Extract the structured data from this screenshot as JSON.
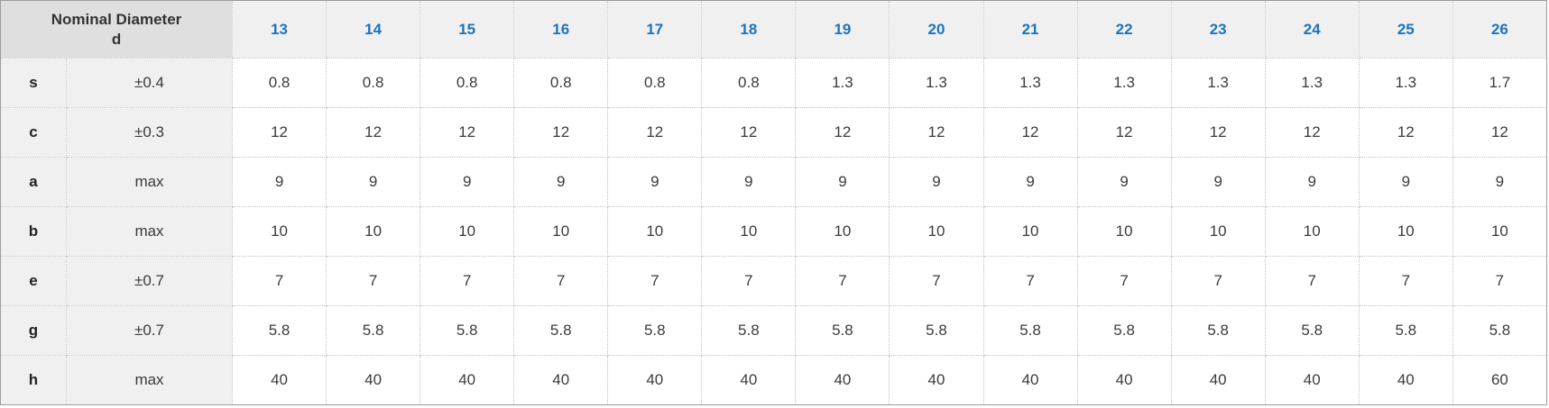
{
  "table": {
    "corner_header": {
      "title": "Nominal Diameter",
      "symbol": "d"
    },
    "columns": [
      "13",
      "14",
      "15",
      "16",
      "17",
      "18",
      "19",
      "20",
      "21",
      "22",
      "23",
      "24",
      "25",
      "26"
    ],
    "rows": [
      {
        "label": "s",
        "tolerance": "±0.4",
        "values": [
          "0.8",
          "0.8",
          "0.8",
          "0.8",
          "0.8",
          "0.8",
          "1.3",
          "1.3",
          "1.3",
          "1.3",
          "1.3",
          "1.3",
          "1.3",
          "1.7"
        ]
      },
      {
        "label": "c",
        "tolerance": "±0.3",
        "values": [
          "12",
          "12",
          "12",
          "12",
          "12",
          "12",
          "12",
          "12",
          "12",
          "12",
          "12",
          "12",
          "12",
          "12"
        ]
      },
      {
        "label": "a",
        "tolerance": "max",
        "values": [
          "9",
          "9",
          "9",
          "9",
          "9",
          "9",
          "9",
          "9",
          "9",
          "9",
          "9",
          "9",
          "9",
          "9"
        ]
      },
      {
        "label": "b",
        "tolerance": "max",
        "values": [
          "10",
          "10",
          "10",
          "10",
          "10",
          "10",
          "10",
          "10",
          "10",
          "10",
          "10",
          "10",
          "10",
          "10"
        ]
      },
      {
        "label": "e",
        "tolerance": "±0.7",
        "values": [
          "7",
          "7",
          "7",
          "7",
          "7",
          "7",
          "7",
          "7",
          "7",
          "7",
          "7",
          "7",
          "7",
          "7"
        ]
      },
      {
        "label": "g",
        "tolerance": "±0.7",
        "values": [
          "5.8",
          "5.8",
          "5.8",
          "5.8",
          "5.8",
          "5.8",
          "5.8",
          "5.8",
          "5.8",
          "5.8",
          "5.8",
          "5.8",
          "5.8",
          "5.8"
        ]
      },
      {
        "label": "h",
        "tolerance": "max",
        "values": [
          "40",
          "40",
          "40",
          "40",
          "40",
          "40",
          "40",
          "40",
          "40",
          "40",
          "40",
          "40",
          "40",
          "60"
        ]
      }
    ],
    "colors": {
      "column_header_text": "#1b74bc",
      "corner_background": "#e0dfe0",
      "header_background": "#f1f0f1",
      "cell_text": "#3b3b3b",
      "outer_border": "#9d9d9d",
      "inner_border": "#c3c2c3"
    }
  }
}
